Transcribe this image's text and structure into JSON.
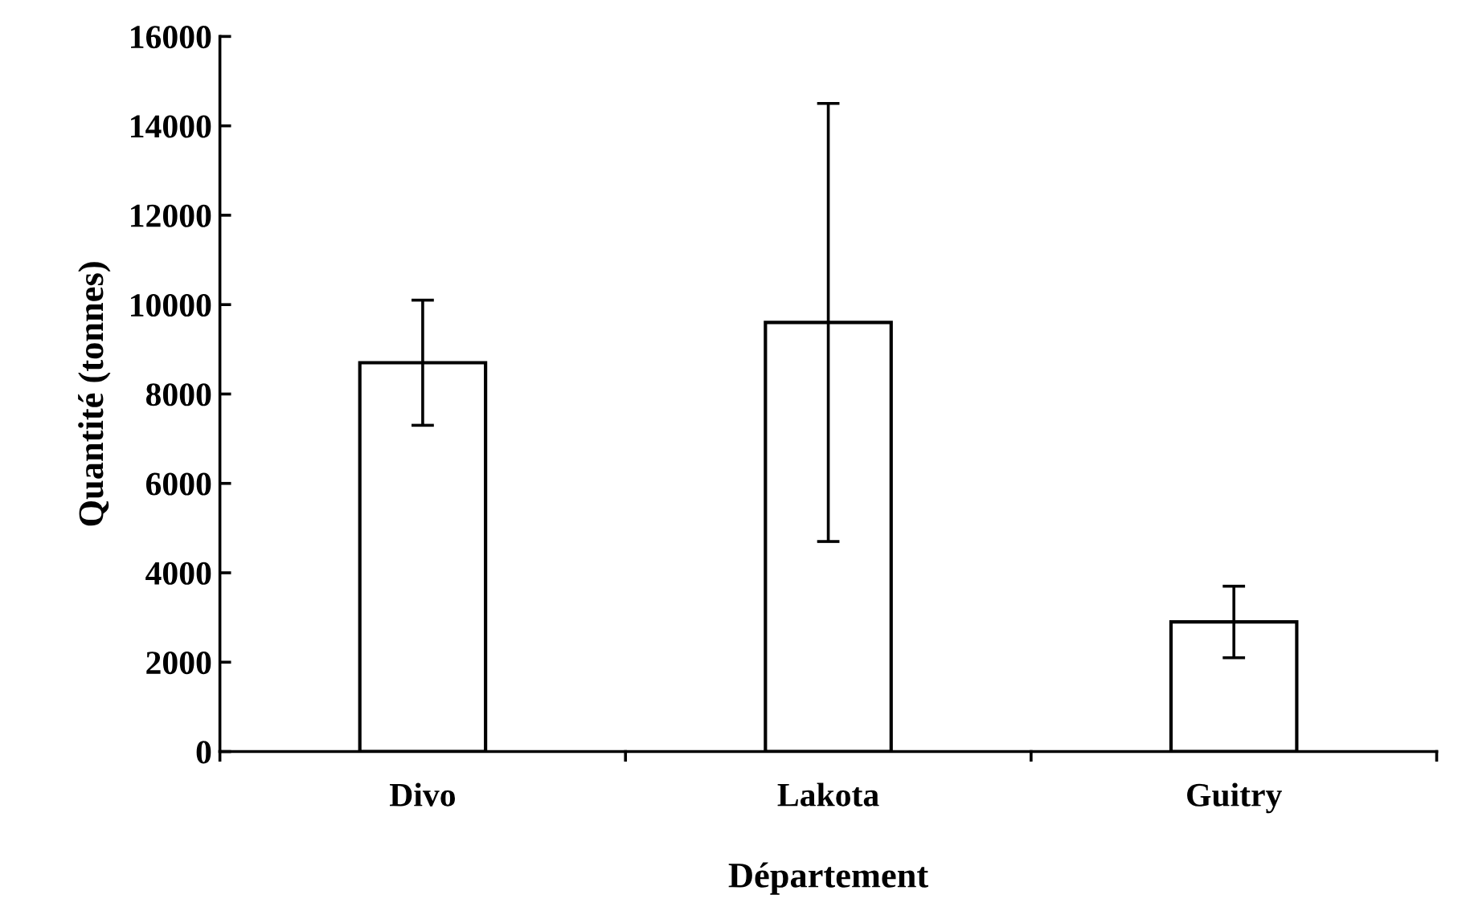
{
  "chart_data": {
    "type": "bar",
    "xlabel": "Département",
    "ylabel": "Quantité (tonnes)",
    "categories": [
      "Divo",
      "Lakota",
      "Guitry"
    ],
    "values": [
      8700,
      9600,
      2900
    ],
    "errors": [
      1400,
      4900,
      800
    ],
    "color": "#ffffff",
    "ylim": [
      0,
      16000
    ],
    "yticks": [
      0,
      2000,
      4000,
      6000,
      8000,
      10000,
      12000,
      14000,
      16000
    ],
    "grid": false
  }
}
